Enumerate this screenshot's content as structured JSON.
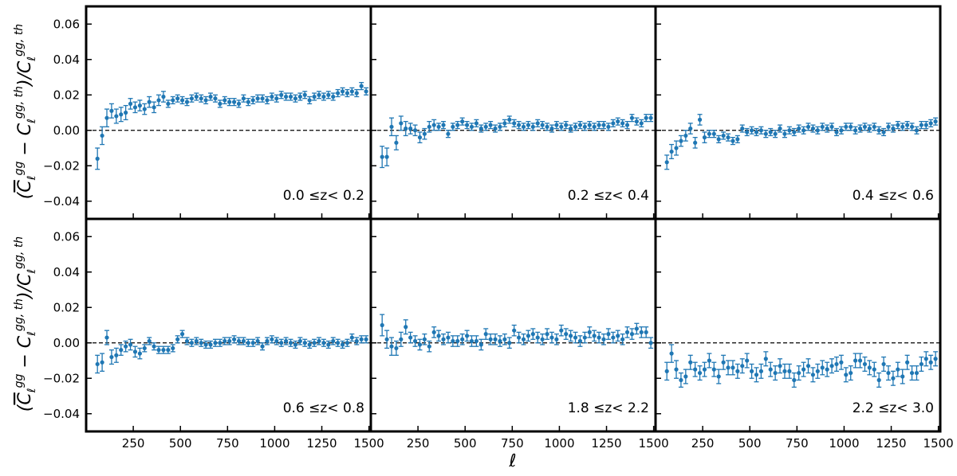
{
  "figure": {
    "ylabel": "(C̄ℓ^gg − Cℓ^gg,th)/Cℓ^gg,th",
    "xlabel": "ℓ",
    "series_color": "#1f77b4"
  },
  "chart_data": [
    {
      "type": "scatter",
      "label": "0.0 ≤z< 0.2",
      "xlim": [
        0,
        1510
      ],
      "ylim": [
        -0.05,
        0.07
      ],
      "xticks": [
        250,
        500,
        750,
        1000,
        1250,
        1500
      ],
      "yticks": [
        -0.04,
        -0.02,
        0.0,
        0.02,
        0.04,
        0.06
      ],
      "grid": false,
      "x": [
        60,
        85,
        110,
        135,
        160,
        185,
        210,
        235,
        260,
        285,
        310,
        335,
        360,
        385,
        410,
        435,
        460,
        485,
        510,
        535,
        560,
        585,
        610,
        635,
        660,
        685,
        710,
        735,
        760,
        785,
        810,
        835,
        860,
        885,
        910,
        935,
        960,
        985,
        1010,
        1035,
        1060,
        1085,
        1110,
        1135,
        1160,
        1185,
        1210,
        1235,
        1260,
        1285,
        1310,
        1335,
        1360,
        1385,
        1410,
        1435,
        1460,
        1485
      ],
      "y": [
        -0.016,
        -0.003,
        0.007,
        0.011,
        0.008,
        0.009,
        0.01,
        0.015,
        0.013,
        0.014,
        0.012,
        0.016,
        0.013,
        0.017,
        0.019,
        0.015,
        0.017,
        0.018,
        0.017,
        0.016,
        0.018,
        0.019,
        0.018,
        0.017,
        0.019,
        0.018,
        0.015,
        0.017,
        0.016,
        0.016,
        0.015,
        0.018,
        0.016,
        0.017,
        0.018,
        0.018,
        0.017,
        0.019,
        0.018,
        0.02,
        0.019,
        0.019,
        0.018,
        0.019,
        0.02,
        0.017,
        0.019,
        0.02,
        0.019,
        0.02,
        0.019,
        0.021,
        0.022,
        0.021,
        0.022,
        0.021,
        0.025,
        0.022
      ],
      "err": [
        0.006,
        0.005,
        0.005,
        0.004,
        0.004,
        0.004,
        0.004,
        0.003,
        0.003,
        0.003,
        0.003,
        0.003,
        0.003,
        0.003,
        0.003,
        0.002,
        0.002,
        0.002,
        0.002,
        0.002,
        0.002,
        0.002,
        0.002,
        0.002,
        0.002,
        0.002,
        0.002,
        0.002,
        0.002,
        0.002,
        0.002,
        0.002,
        0.002,
        0.002,
        0.002,
        0.002,
        0.002,
        0.002,
        0.002,
        0.002,
        0.002,
        0.002,
        0.002,
        0.002,
        0.002,
        0.002,
        0.002,
        0.002,
        0.002,
        0.002,
        0.002,
        0.002,
        0.002,
        0.002,
        0.002,
        0.002,
        0.002,
        0.002
      ]
    },
    {
      "type": "scatter",
      "label": "0.2 ≤z< 0.4",
      "xlim": [
        0,
        1510
      ],
      "ylim": [
        -0.05,
        0.07
      ],
      "xticks": [
        250,
        500,
        750,
        1000,
        1250,
        1500
      ],
      "yticks": [
        -0.04,
        -0.02,
        0.0,
        0.02,
        0.04,
        0.06
      ],
      "grid": false,
      "x": [
        60,
        85,
        110,
        135,
        160,
        185,
        210,
        235,
        260,
        285,
        310,
        335,
        360,
        385,
        410,
        435,
        460,
        485,
        510,
        535,
        560,
        585,
        610,
        635,
        660,
        685,
        710,
        735,
        760,
        785,
        810,
        835,
        860,
        885,
        910,
        935,
        960,
        985,
        1010,
        1035,
        1060,
        1085,
        1110,
        1135,
        1160,
        1185,
        1210,
        1235,
        1260,
        1285,
        1310,
        1335,
        1360,
        1385,
        1410,
        1435,
        1460,
        1485
      ],
      "y": [
        -0.015,
        -0.015,
        0.002,
        -0.007,
        0.004,
        0.001,
        0.001,
        0.0,
        -0.004,
        -0.002,
        0.002,
        0.003,
        0.002,
        0.003,
        -0.002,
        0.002,
        0.003,
        0.005,
        0.003,
        0.002,
        0.004,
        0.001,
        0.002,
        0.003,
        0.001,
        0.002,
        0.004,
        0.006,
        0.004,
        0.003,
        0.002,
        0.003,
        0.002,
        0.004,
        0.003,
        0.002,
        0.001,
        0.003,
        0.002,
        0.003,
        0.001,
        0.002,
        0.003,
        0.002,
        0.003,
        0.002,
        0.003,
        0.003,
        0.002,
        0.004,
        0.005,
        0.004,
        0.003,
        0.007,
        0.005,
        0.004,
        0.007,
        0.007
      ],
      "err": [
        0.006,
        0.005,
        0.005,
        0.004,
        0.004,
        0.004,
        0.003,
        0.003,
        0.003,
        0.003,
        0.003,
        0.003,
        0.002,
        0.002,
        0.002,
        0.002,
        0.002,
        0.002,
        0.002,
        0.002,
        0.002,
        0.002,
        0.002,
        0.002,
        0.002,
        0.002,
        0.002,
        0.002,
        0.002,
        0.002,
        0.002,
        0.002,
        0.002,
        0.002,
        0.002,
        0.002,
        0.002,
        0.002,
        0.002,
        0.002,
        0.002,
        0.002,
        0.002,
        0.002,
        0.002,
        0.002,
        0.002,
        0.002,
        0.002,
        0.002,
        0.002,
        0.002,
        0.002,
        0.002,
        0.002,
        0.002,
        0.002,
        0.002
      ]
    },
    {
      "type": "scatter",
      "label": "0.4 ≤z< 0.6",
      "xlim": [
        0,
        1510
      ],
      "ylim": [
        -0.05,
        0.07
      ],
      "xticks": [
        250,
        500,
        750,
        1000,
        1250,
        1500
      ],
      "yticks": [
        -0.04,
        -0.02,
        0.0,
        0.02,
        0.04,
        0.06
      ],
      "grid": false,
      "x": [
        60,
        85,
        110,
        135,
        160,
        185,
        210,
        235,
        260,
        285,
        310,
        335,
        360,
        385,
        410,
        435,
        460,
        485,
        510,
        535,
        560,
        585,
        610,
        635,
        660,
        685,
        710,
        735,
        760,
        785,
        810,
        835,
        860,
        885,
        910,
        935,
        960,
        985,
        1010,
        1035,
        1060,
        1085,
        1110,
        1135,
        1160,
        1185,
        1210,
        1235,
        1260,
        1285,
        1310,
        1335,
        1360,
        1385,
        1410,
        1435,
        1460,
        1485
      ],
      "y": [
        -0.018,
        -0.012,
        -0.01,
        -0.006,
        -0.003,
        0.001,
        -0.007,
        0.006,
        -0.004,
        -0.002,
        -0.002,
        -0.005,
        -0.003,
        -0.004,
        -0.006,
        -0.005,
        0.001,
        -0.001,
        0.0,
        -0.001,
        0.0,
        -0.002,
        -0.001,
        -0.002,
        0.001,
        -0.002,
        0.0,
        -0.001,
        0.001,
        0.0,
        0.002,
        0.001,
        0.0,
        0.002,
        0.001,
        0.002,
        -0.001,
        0.0,
        0.002,
        0.002,
        0.0,
        0.001,
        0.002,
        0.001,
        0.002,
        0.0,
        -0.001,
        0.002,
        0.001,
        0.003,
        0.002,
        0.003,
        0.002,
        0.0,
        0.003,
        0.003,
        0.004,
        0.005
      ],
      "err": [
        0.004,
        0.004,
        0.004,
        0.003,
        0.003,
        0.003,
        0.003,
        0.003,
        0.003,
        0.002,
        0.002,
        0.002,
        0.002,
        0.002,
        0.002,
        0.002,
        0.002,
        0.002,
        0.002,
        0.002,
        0.002,
        0.002,
        0.002,
        0.002,
        0.002,
        0.002,
        0.002,
        0.002,
        0.002,
        0.002,
        0.002,
        0.002,
        0.002,
        0.002,
        0.002,
        0.002,
        0.002,
        0.002,
        0.002,
        0.002,
        0.002,
        0.002,
        0.002,
        0.002,
        0.002,
        0.002,
        0.002,
        0.002,
        0.002,
        0.002,
        0.002,
        0.002,
        0.002,
        0.002,
        0.002,
        0.002,
        0.002,
        0.002
      ]
    },
    {
      "type": "scatter",
      "label": "0.6 ≤z< 0.8",
      "xlim": [
        0,
        1510
      ],
      "ylim": [
        -0.05,
        0.07
      ],
      "xticks": [
        250,
        500,
        750,
        1000,
        1250,
        1500
      ],
      "yticks": [
        -0.04,
        -0.02,
        0.0,
        0.02,
        0.04,
        0.06
      ],
      "grid": false,
      "x": [
        60,
        85,
        110,
        135,
        160,
        185,
        210,
        235,
        260,
        285,
        310,
        335,
        360,
        385,
        410,
        435,
        460,
        485,
        510,
        535,
        560,
        585,
        610,
        635,
        660,
        685,
        710,
        735,
        760,
        785,
        810,
        835,
        860,
        885,
        910,
        935,
        960,
        985,
        1010,
        1035,
        1060,
        1085,
        1110,
        1135,
        1160,
        1185,
        1210,
        1235,
        1260,
        1285,
        1310,
        1335,
        1360,
        1385,
        1410,
        1435,
        1460,
        1485
      ],
      "y": [
        -0.012,
        -0.011,
        0.003,
        -0.008,
        -0.007,
        -0.004,
        -0.002,
        -0.001,
        -0.005,
        -0.006,
        -0.003,
        0.001,
        -0.002,
        -0.004,
        -0.004,
        -0.004,
        -0.003,
        0.002,
        0.005,
        0.001,
        0.0,
        0.001,
        0.0,
        -0.001,
        -0.001,
        0.0,
        0.0,
        0.001,
        0.001,
        0.002,
        0.001,
        0.001,
        0.0,
        0.0,
        0.001,
        -0.002,
        0.001,
        0.002,
        0.001,
        0.0,
        0.001,
        0.0,
        -0.001,
        0.001,
        0.0,
        -0.001,
        0.0,
        0.001,
        0.0,
        -0.001,
        0.001,
        0.0,
        -0.001,
        0.0,
        0.003,
        0.001,
        0.002,
        0.002
      ],
      "err": [
        0.005,
        0.005,
        0.004,
        0.004,
        0.004,
        0.003,
        0.003,
        0.003,
        0.003,
        0.003,
        0.002,
        0.002,
        0.002,
        0.002,
        0.002,
        0.002,
        0.002,
        0.002,
        0.002,
        0.002,
        0.002,
        0.002,
        0.002,
        0.002,
        0.002,
        0.002,
        0.002,
        0.002,
        0.002,
        0.002,
        0.002,
        0.002,
        0.002,
        0.002,
        0.002,
        0.002,
        0.002,
        0.002,
        0.002,
        0.002,
        0.002,
        0.002,
        0.002,
        0.002,
        0.002,
        0.002,
        0.002,
        0.002,
        0.002,
        0.002,
        0.002,
        0.002,
        0.002,
        0.002,
        0.002,
        0.002,
        0.002,
        0.002
      ]
    },
    {
      "type": "scatter",
      "label": "1.8 ≤z< 2.2",
      "xlim": [
        0,
        1510
      ],
      "ylim": [
        -0.05,
        0.07
      ],
      "xticks": [
        250,
        500,
        750,
        1000,
        1250,
        1500
      ],
      "yticks": [
        -0.04,
        -0.02,
        0.0,
        0.02,
        0.04,
        0.06
      ],
      "grid": false,
      "x": [
        60,
        85,
        110,
        135,
        160,
        185,
        210,
        235,
        260,
        285,
        310,
        335,
        360,
        385,
        410,
        435,
        460,
        485,
        510,
        535,
        560,
        585,
        610,
        635,
        660,
        685,
        710,
        735,
        760,
        785,
        810,
        835,
        860,
        885,
        910,
        935,
        960,
        985,
        1010,
        1035,
        1060,
        1085,
        1110,
        1135,
        1160,
        1185,
        1210,
        1235,
        1260,
        1285,
        1310,
        1335,
        1360,
        1385,
        1410,
        1435,
        1460,
        1485
      ],
      "y": [
        0.01,
        0.002,
        -0.002,
        -0.003,
        0.002,
        0.009,
        0.003,
        0.001,
        -0.001,
        0.002,
        -0.002,
        0.006,
        0.004,
        0.002,
        0.003,
        0.001,
        0.001,
        0.002,
        0.004,
        0.001,
        0.001,
        -0.001,
        0.005,
        0.002,
        0.002,
        0.001,
        0.002,
        0.0,
        0.007,
        0.003,
        0.002,
        0.004,
        0.005,
        0.003,
        0.002,
        0.005,
        0.003,
        0.002,
        0.007,
        0.005,
        0.004,
        0.003,
        0.001,
        0.003,
        0.006,
        0.004,
        0.003,
        0.002,
        0.005,
        0.003,
        0.004,
        0.002,
        0.006,
        0.005,
        0.008,
        0.006,
        0.006,
        0.0
      ],
      "err": [
        0.006,
        0.005,
        0.005,
        0.004,
        0.004,
        0.004,
        0.003,
        0.003,
        0.003,
        0.003,
        0.003,
        0.003,
        0.003,
        0.003,
        0.003,
        0.003,
        0.003,
        0.003,
        0.003,
        0.003,
        0.003,
        0.003,
        0.003,
        0.003,
        0.003,
        0.003,
        0.003,
        0.003,
        0.003,
        0.003,
        0.003,
        0.003,
        0.003,
        0.003,
        0.003,
        0.003,
        0.003,
        0.003,
        0.003,
        0.003,
        0.003,
        0.003,
        0.003,
        0.003,
        0.003,
        0.003,
        0.003,
        0.003,
        0.003,
        0.003,
        0.003,
        0.003,
        0.003,
        0.003,
        0.003,
        0.003,
        0.003,
        0.003
      ]
    },
    {
      "type": "scatter",
      "label": "2.2 ≤z< 3.0",
      "xlim": [
        0,
        1510
      ],
      "ylim": [
        -0.05,
        0.07
      ],
      "xticks": [
        250,
        500,
        750,
        1000,
        1250,
        1500
      ],
      "yticks": [
        -0.04,
        -0.02,
        0.0,
        0.02,
        0.04,
        0.06
      ],
      "grid": false,
      "x": [
        60,
        85,
        110,
        135,
        160,
        185,
        210,
        235,
        260,
        285,
        310,
        335,
        360,
        385,
        410,
        435,
        460,
        485,
        510,
        535,
        560,
        585,
        610,
        635,
        660,
        685,
        710,
        735,
        760,
        785,
        810,
        835,
        860,
        885,
        910,
        935,
        960,
        985,
        1010,
        1035,
        1060,
        1085,
        1110,
        1135,
        1160,
        1185,
        1210,
        1235,
        1260,
        1285,
        1310,
        1335,
        1360,
        1385,
        1410,
        1435,
        1460,
        1485
      ],
      "y": [
        -0.016,
        -0.006,
        -0.015,
        -0.021,
        -0.019,
        -0.011,
        -0.015,
        -0.017,
        -0.015,
        -0.01,
        -0.015,
        -0.019,
        -0.011,
        -0.014,
        -0.014,
        -0.016,
        -0.013,
        -0.01,
        -0.016,
        -0.018,
        -0.016,
        -0.009,
        -0.015,
        -0.017,
        -0.013,
        -0.016,
        -0.016,
        -0.021,
        -0.017,
        -0.015,
        -0.013,
        -0.018,
        -0.016,
        -0.014,
        -0.015,
        -0.013,
        -0.012,
        -0.011,
        -0.018,
        -0.017,
        -0.01,
        -0.01,
        -0.012,
        -0.014,
        -0.015,
        -0.021,
        -0.012,
        -0.017,
        -0.02,
        -0.015,
        -0.019,
        -0.011,
        -0.017,
        -0.017,
        -0.012,
        -0.009,
        -0.011,
        -0.009
      ],
      "err": [
        0.005,
        0.005,
        0.005,
        0.004,
        0.004,
        0.004,
        0.004,
        0.004,
        0.004,
        0.004,
        0.004,
        0.004,
        0.004,
        0.004,
        0.004,
        0.004,
        0.004,
        0.004,
        0.004,
        0.004,
        0.004,
        0.004,
        0.004,
        0.004,
        0.004,
        0.004,
        0.004,
        0.004,
        0.004,
        0.004,
        0.004,
        0.004,
        0.004,
        0.004,
        0.004,
        0.004,
        0.004,
        0.004,
        0.004,
        0.004,
        0.004,
        0.004,
        0.004,
        0.004,
        0.004,
        0.004,
        0.004,
        0.004,
        0.004,
        0.004,
        0.004,
        0.004,
        0.004,
        0.004,
        0.004,
        0.004,
        0.004,
        0.004
      ]
    }
  ]
}
